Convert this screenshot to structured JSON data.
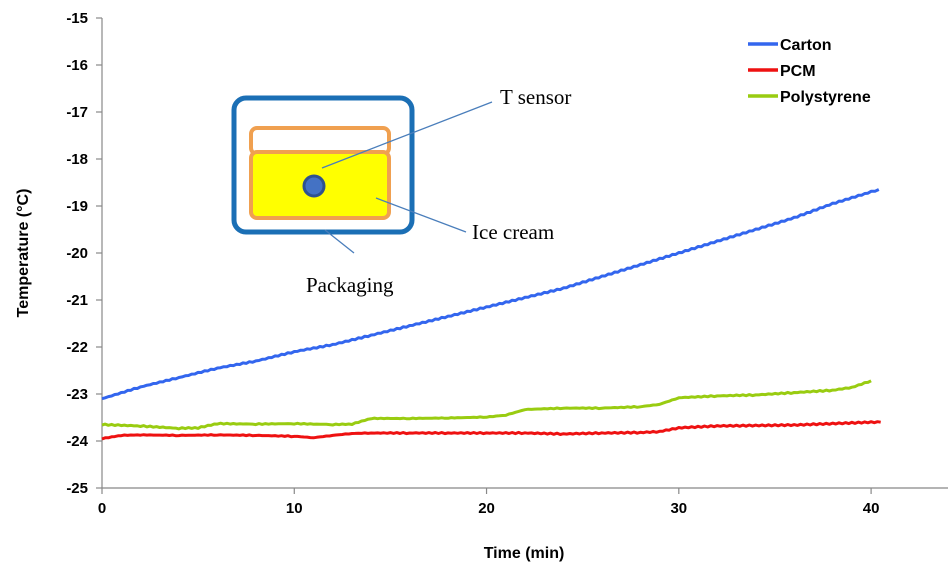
{
  "chart_data": {
    "type": "line",
    "xlabel": "Time (min)",
    "ylabel": "Temperature (°C)",
    "xlim": [
      0,
      44
    ],
    "ylim": [
      -25,
      -15
    ],
    "xticks": [
      0,
      10,
      20,
      30,
      40
    ],
    "yticks": [
      -25,
      -24,
      -23,
      -22,
      -21,
      -20,
      -19,
      -18,
      -17,
      -16,
      -15
    ],
    "grid": false,
    "legend_position": "top-right",
    "series": [
      {
        "name": "Carton",
        "color": "#3366ee",
        "x": [
          0,
          2,
          4,
          6,
          8,
          10,
          12,
          14,
          16,
          18,
          20,
          22,
          24,
          26,
          28,
          30,
          32,
          34,
          36,
          38,
          40,
          40.4
        ],
        "y": [
          -23.1,
          -22.85,
          -22.65,
          -22.45,
          -22.3,
          -22.1,
          -21.95,
          -21.75,
          -21.55,
          -21.35,
          -21.15,
          -20.95,
          -20.75,
          -20.5,
          -20.25,
          -20.0,
          -19.75,
          -19.5,
          -19.25,
          -18.95,
          -18.7,
          -18.65
        ]
      },
      {
        "name": "PCM",
        "color": "#ee1111",
        "x": [
          0,
          1,
          2,
          4,
          6,
          8,
          10,
          11,
          12,
          13,
          14,
          16,
          18,
          20,
          22,
          24,
          26,
          28,
          29,
          30,
          32,
          34,
          36,
          38,
          40,
          40.5
        ],
        "y": [
          -23.95,
          -23.88,
          -23.87,
          -23.88,
          -23.87,
          -23.88,
          -23.9,
          -23.93,
          -23.88,
          -23.84,
          -23.83,
          -23.83,
          -23.83,
          -23.83,
          -23.83,
          -23.85,
          -23.83,
          -23.82,
          -23.8,
          -23.72,
          -23.68,
          -23.67,
          -23.66,
          -23.63,
          -23.6,
          -23.6
        ]
      },
      {
        "name": "Polystyrene",
        "color": "#99cc11",
        "x": [
          0,
          2,
          4,
          5,
          6,
          8,
          10,
          12,
          13,
          14,
          16,
          18,
          20,
          21,
          22,
          24,
          26,
          28,
          29,
          30,
          32,
          34,
          36,
          38,
          39,
          40
        ],
        "y": [
          -23.65,
          -23.68,
          -23.73,
          -23.72,
          -23.63,
          -23.64,
          -23.63,
          -23.65,
          -23.64,
          -23.52,
          -23.52,
          -23.51,
          -23.49,
          -23.45,
          -23.33,
          -23.3,
          -23.3,
          -23.27,
          -23.22,
          -23.08,
          -23.04,
          -23.02,
          -22.97,
          -22.92,
          -22.86,
          -22.72
        ]
      }
    ],
    "annotations": {
      "sensor_label": "T sensor",
      "product_label": "Ice cream",
      "packaging_label": "Packaging"
    }
  }
}
